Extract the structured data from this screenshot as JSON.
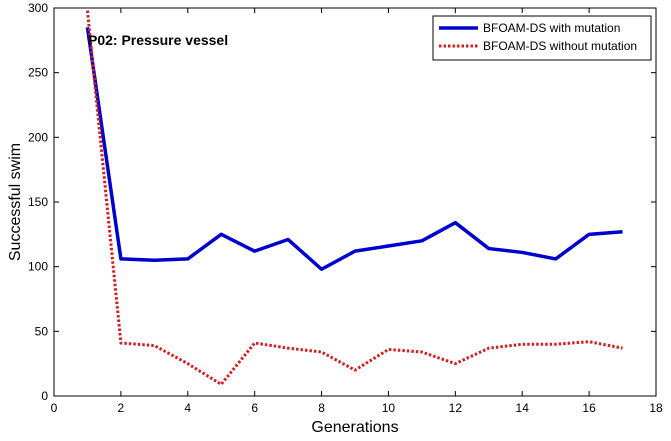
{
  "chart_data": {
    "type": "line",
    "title": "P02: Pressure vessel",
    "xlabel": "Generations",
    "ylabel": "Successful swim",
    "xlim": [
      0,
      18
    ],
    "ylim": [
      0,
      300
    ],
    "xticks": [
      0,
      2,
      4,
      6,
      8,
      10,
      12,
      14,
      16,
      18
    ],
    "yticks": [
      0,
      50,
      100,
      150,
      200,
      250,
      300
    ],
    "grid": false,
    "legend_position": "top-right",
    "x": [
      1,
      2,
      3,
      4,
      5,
      6,
      7,
      8,
      9,
      10,
      11,
      12,
      13,
      14,
      15,
      16,
      17
    ],
    "series": [
      {
        "name": "BFOAM-DS with mutation",
        "color": "#0000cc",
        "style": "solid",
        "values": [
          285,
          106,
          105,
          106,
          125,
          112,
          121,
          98,
          112,
          116,
          120,
          134,
          114,
          111,
          106,
          125,
          127
        ]
      },
      {
        "name": "BFOAM-DS without mutation",
        "color": "#cc2222",
        "style": "dotted",
        "values": [
          298,
          41,
          39,
          25,
          9,
          41,
          37,
          34,
          20,
          36,
          34,
          25,
          37,
          40,
          40,
          42,
          37
        ]
      }
    ]
  }
}
